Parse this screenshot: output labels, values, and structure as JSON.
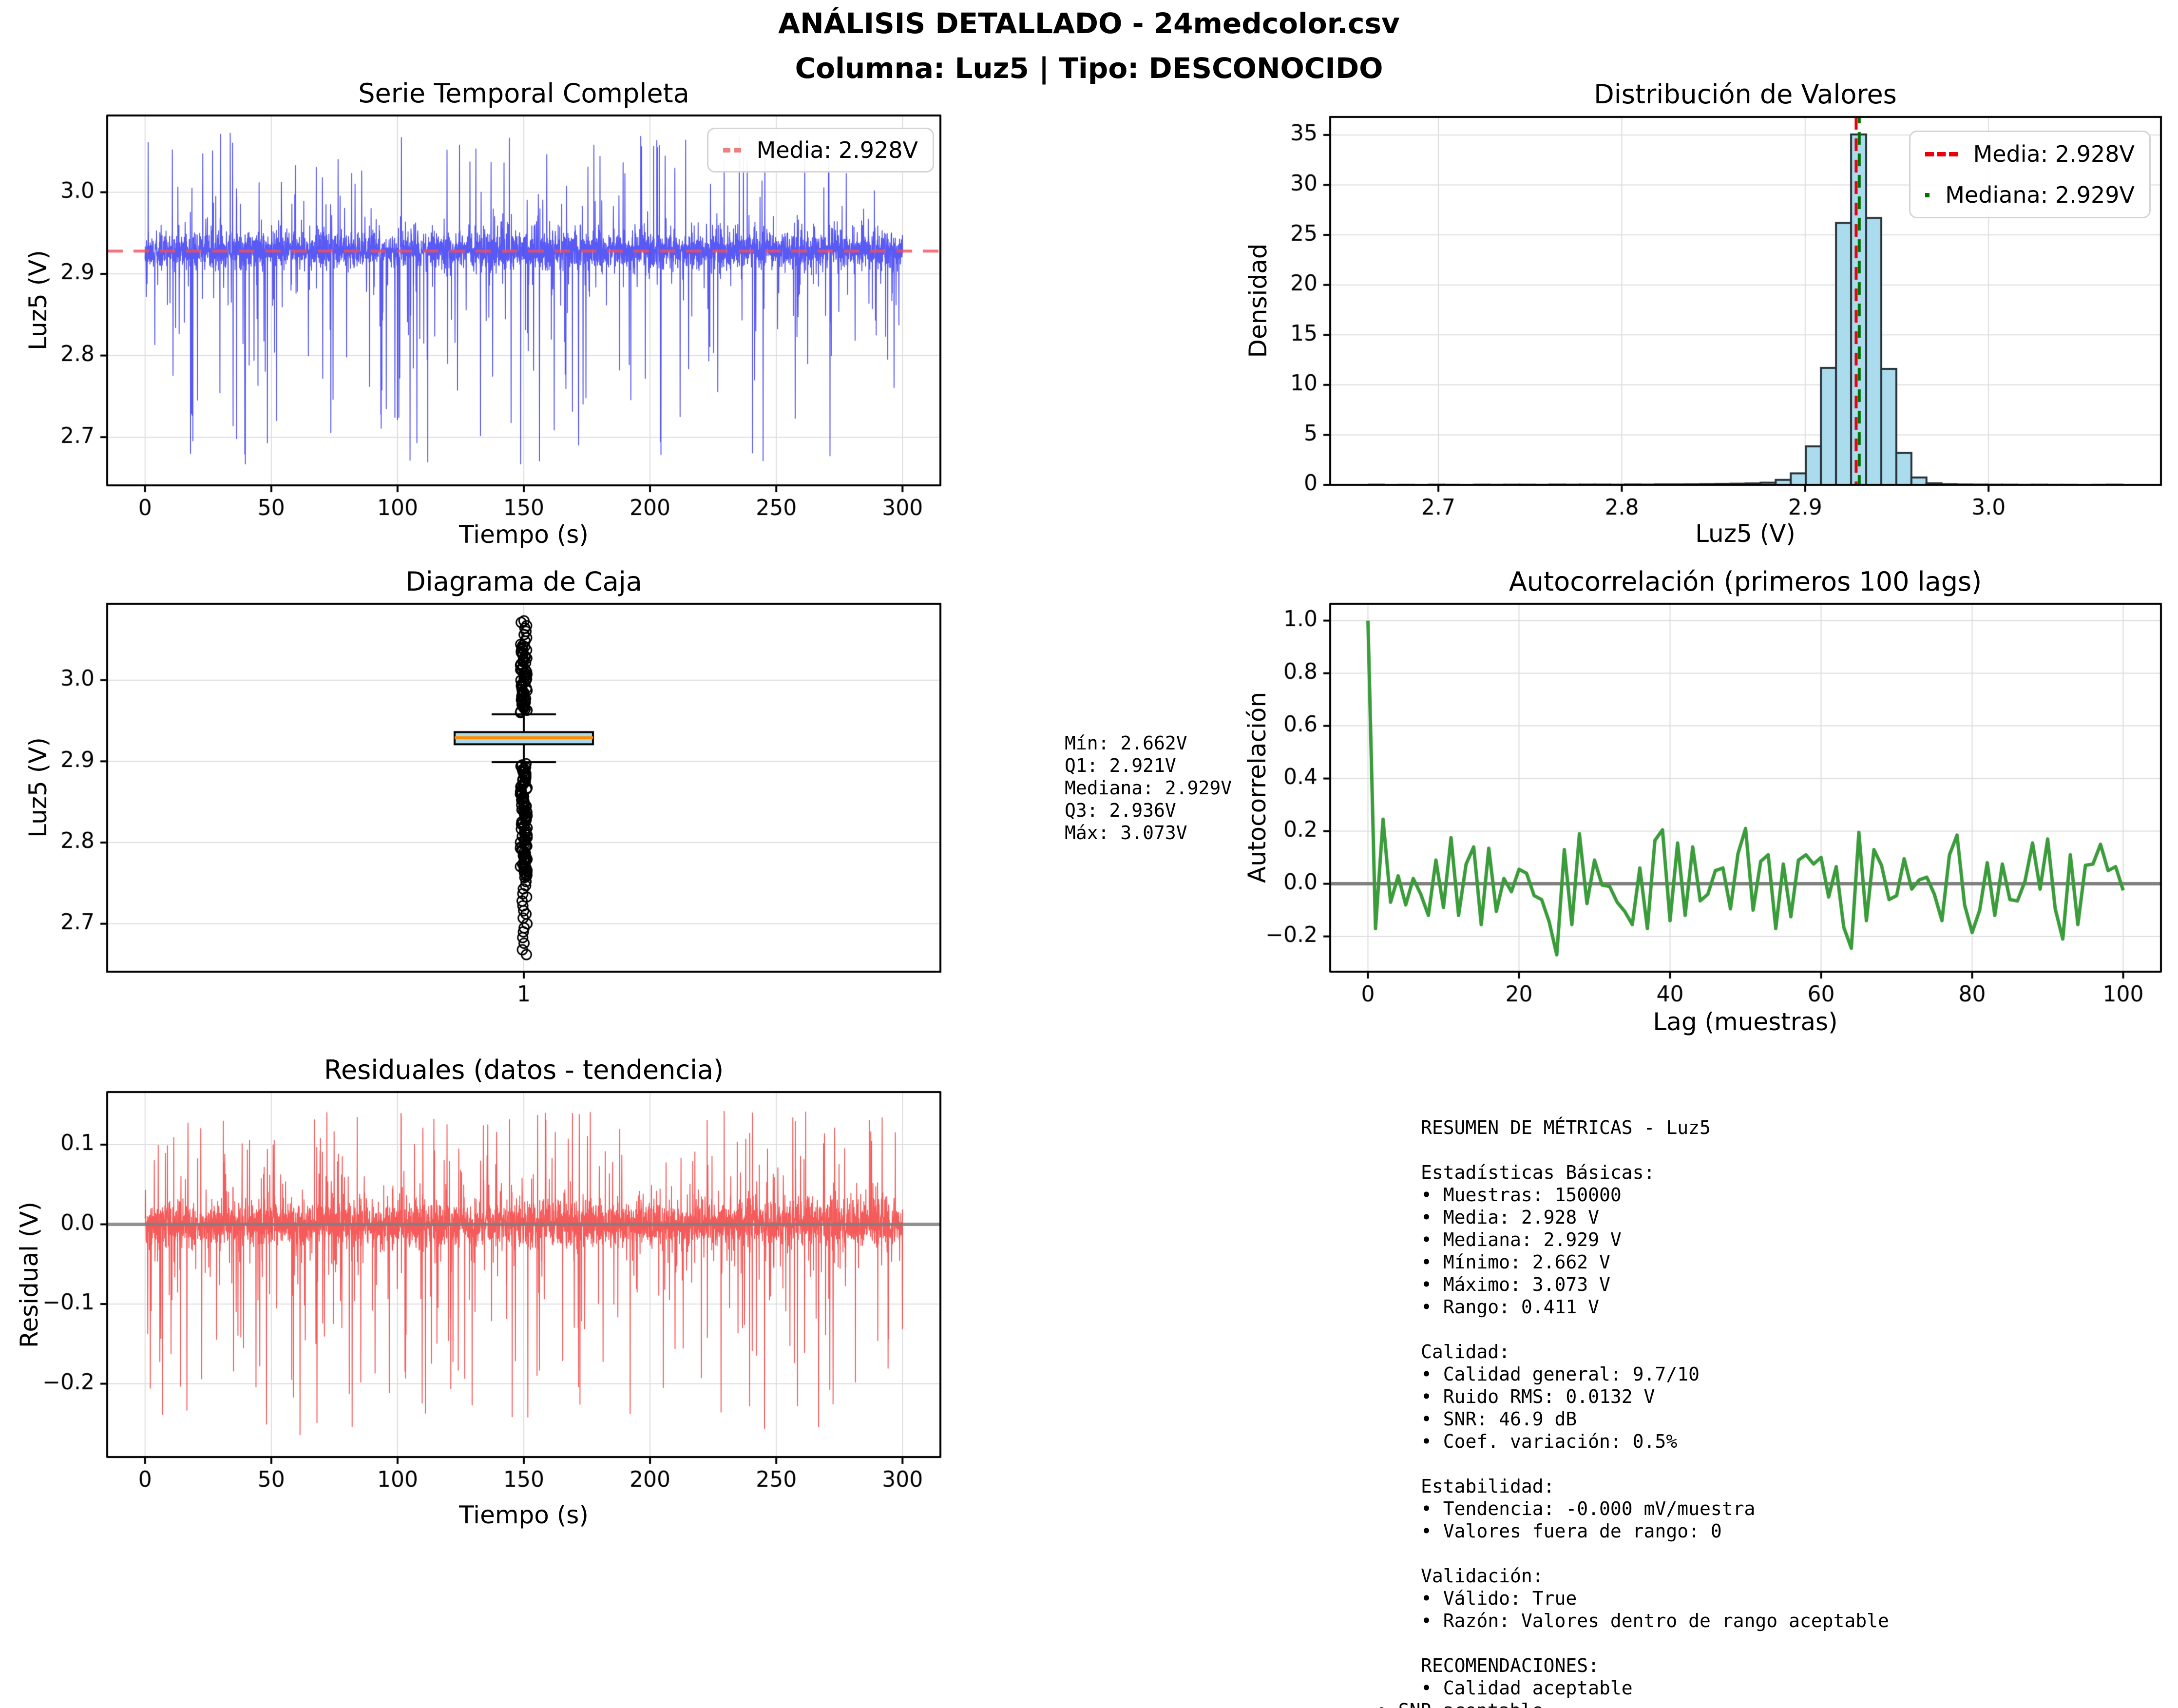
{
  "header": {
    "line1": "ANÁLISIS DETALLADO - 24medcolor.csv",
    "line2": "Columna: Luz5 | Tipo: DESCONOCIDO"
  },
  "colors": {
    "series_blue": "rgba(25,25,240,0.72)",
    "mean_dash_overlay": "rgba(242,80,90,0.80)",
    "legend_mean_sample": "#f08080",
    "hist_fill": "#aadcee",
    "hist_edge": "#28333a",
    "hist_mean_line": "#e8000b",
    "hist_median_line": "#007000",
    "box_fill": "#add8e6",
    "box_median": "#ff8c00",
    "acf_green": "#3a9c3a",
    "residual_red": "rgba(244,45,45,0.78)",
    "zero_line": "#808080",
    "grid": "#dcdcdc",
    "spine": "#000000"
  },
  "panels": {
    "timeseries": {
      "title": "Serie Temporal Completa",
      "xlabel": "Tiempo (s)",
      "ylabel": "Luz5 (V)",
      "legend": {
        "media": "Media: 2.928V"
      }
    },
    "histogram": {
      "title": "Distribución de Valores",
      "xlabel": "Luz5 (V)",
      "ylabel": "Densidad",
      "legend": {
        "media": "Media: 2.928V",
        "mediana": "Mediana: 2.929V"
      }
    },
    "boxplot": {
      "title": "Diagrama de Caja",
      "ylabel": "Luz5 (V)",
      "xtick": "1"
    },
    "autocorr": {
      "title": "Autocorrelación (primeros 100 lags)",
      "xlabel": "Lag (muestras)",
      "ylabel": "Autocorrelación"
    },
    "residuals": {
      "title": "Residuales (datos - tendencia)",
      "xlabel": "Tiempo (s)",
      "ylabel": "Residual (V)"
    }
  },
  "stats_box": {
    "lines": [
      "Mín: 2.662V",
      "Q1: 2.921V",
      "Mediana: 2.929V",
      "Q3: 2.936V",
      "Máx: 3.073V"
    ]
  },
  "summary_box": {
    "outdent_last_line": true,
    "lines": [
      "RESUMEN DE MÉTRICAS - Luz5",
      "",
      "Estadísticas Básicas:",
      "• Muestras: 150000",
      "• Media: 2.928 V",
      "• Mediana: 2.929 V",
      "• Mínimo: 2.662 V",
      "• Máximo: 3.073 V",
      "• Rango: 0.411 V",
      "",
      "Calidad:",
      "• Calidad general: 9.7/10",
      "• Ruido RMS: 0.0132 V",
      "• SNR: 46.9 dB",
      "• Coef. variación: 0.5%",
      "",
      "Estabilidad:",
      "• Tendencia: -0.000 mV/muestra",
      "• Valores fuera de rango: 0",
      "",
      "Validación:",
      "• Válido: True",
      "• Razón: Valores dentro de rango aceptable",
      "",
      "RECOMENDACIONES:",
      "• Calidad aceptable",
      "• SNR aceptable"
    ]
  },
  "chart_data": [
    {
      "id": "timeseries",
      "type": "line",
      "title": "Serie Temporal Completa",
      "xlabel": "Tiempo (s)",
      "ylabel": "Luz5 (V)",
      "xlim": [
        -15,
        315
      ],
      "ylim": [
        2.641,
        3.094
      ],
      "xticks": [
        [
          0,
          "0"
        ],
        [
          50,
          "50"
        ],
        [
          100,
          "100"
        ],
        [
          150,
          "150"
        ],
        [
          200,
          "200"
        ],
        [
          250,
          "250"
        ],
        [
          300,
          "300"
        ]
      ],
      "yticks": [
        [
          2.7,
          "2.7"
        ],
        [
          2.8,
          "2.8"
        ],
        [
          2.9,
          "2.9"
        ],
        [
          3.0,
          "3.0"
        ]
      ],
      "grid": true,
      "legend_position": "upper right",
      "mean_line": 2.928,
      "synth": {
        "n": 4200,
        "x_max": 300,
        "mean": 2.9285,
        "sigma": 0.011,
        "p_down": 0.05,
        "down_min": 0.04,
        "down_range": 0.225,
        "p_up": 0.042,
        "up_min": 0.03,
        "up_range": 0.115,
        "vmin": 2.662,
        "vmax": 3.073,
        "seed": 42
      }
    },
    {
      "id": "histogram",
      "type": "bar",
      "title": "Distribución de Valores",
      "xlabel": "Luz5 (V)",
      "ylabel": "Densidad",
      "xlim": [
        2.641,
        3.094
      ],
      "ylim": [
        0,
        36.8
      ],
      "xticks": [
        [
          2.7,
          "2.7"
        ],
        [
          2.8,
          "2.8"
        ],
        [
          2.9,
          "2.9"
        ],
        [
          3.0,
          "3.0"
        ]
      ],
      "yticks": [
        [
          0,
          "0"
        ],
        [
          5,
          "5"
        ],
        [
          10,
          "10"
        ],
        [
          15,
          "15"
        ],
        [
          20,
          "20"
        ],
        [
          25,
          "25"
        ],
        [
          30,
          "30"
        ],
        [
          35,
          "35"
        ]
      ],
      "grid": true,
      "legend_position": "upper right",
      "bin_start": 2.662,
      "bin_width": 0.00822,
      "densities": [
        0.02,
        0.0,
        0.01,
        0.0,
        0.02,
        0.01,
        0.0,
        0.02,
        0.01,
        0.02,
        0.02,
        0.01,
        0.03,
        0.02,
        0.03,
        0.03,
        0.02,
        0.04,
        0.03,
        0.05,
        0.05,
        0.06,
        0.08,
        0.1,
        0.12,
        0.15,
        0.22,
        0.5,
        1.15,
        3.85,
        11.7,
        26.2,
        35.05,
        26.7,
        11.6,
        3.2,
        0.74,
        0.16,
        0.07,
        0.04,
        0.03,
        0.02,
        0.02,
        0.01,
        0.02,
        0.01,
        0.01,
        0.0,
        0.01,
        0.02
      ],
      "mean_vline": 2.9278,
      "median_vline": 2.9295
    },
    {
      "id": "boxplot",
      "type": "box",
      "title": "Diagrama de Caja",
      "ylabel": "Luz5 (V)",
      "xticks": [
        [
          1,
          "1"
        ]
      ],
      "ylim": [
        2.641,
        3.094
      ],
      "yticks": [
        [
          2.7,
          "2.7"
        ],
        [
          2.8,
          "2.8"
        ],
        [
          2.9,
          "2.9"
        ],
        [
          3.0,
          "3.0"
        ]
      ],
      "grid": true,
      "stats": {
        "min": 2.662,
        "q1": 2.921,
        "median": 2.929,
        "q3": 2.936,
        "max": 3.073,
        "whisker_low": 2.899,
        "whisker_high": 2.958
      },
      "outliers": {
        "above_dense": {
          "from": 2.96,
          "to": 3.044,
          "count": 60
        },
        "above_sparse": [
          3.048,
          3.052,
          3.056,
          3.06,
          3.064,
          3.067,
          3.071,
          3.073
        ],
        "below_dense": {
          "from": 2.757,
          "to": 2.897,
          "count": 95
        },
        "below_sparse": [
          2.752,
          2.747,
          2.743,
          2.737,
          2.733,
          2.728,
          2.722,
          2.716,
          2.712,
          2.707,
          2.7,
          2.695,
          2.69,
          2.683,
          2.676,
          2.668,
          2.662
        ]
      }
    },
    {
      "id": "autocorr",
      "type": "line",
      "title": "Autocorrelación (primeros 100 lags)",
      "xlabel": "Lag (muestras)",
      "ylabel": "Autocorrelación",
      "xlim": [
        -5,
        105
      ],
      "ylim": [
        -0.334,
        1.064
      ],
      "xticks": [
        [
          0,
          "0"
        ],
        [
          20,
          "20"
        ],
        [
          40,
          "40"
        ],
        [
          60,
          "60"
        ],
        [
          80,
          "80"
        ],
        [
          100,
          "100"
        ]
      ],
      "yticks": [
        [
          -0.2,
          "−0.2"
        ],
        [
          0.0,
          "0.0"
        ],
        [
          0.2,
          "0.2"
        ],
        [
          0.4,
          "0.4"
        ],
        [
          0.6,
          "0.6"
        ],
        [
          0.8,
          "0.8"
        ],
        [
          1.0,
          "1.0"
        ]
      ],
      "grid": true,
      "zero_line": 0,
      "values": [
        1.0,
        -0.17,
        0.245,
        -0.07,
        0.03,
        -0.08,
        0.02,
        -0.04,
        -0.12,
        0.09,
        -0.09,
        0.175,
        -0.12,
        0.075,
        0.14,
        -0.155,
        0.135,
        -0.105,
        0.02,
        -0.03,
        0.055,
        0.04,
        -0.045,
        -0.06,
        -0.145,
        -0.27,
        0.13,
        -0.155,
        0.19,
        -0.075,
        0.09,
        -0.005,
        -0.01,
        -0.07,
        -0.105,
        -0.155,
        0.06,
        -0.17,
        0.165,
        0.205,
        -0.14,
        0.155,
        -0.12,
        0.14,
        -0.065,
        -0.04,
        0.05,
        0.06,
        -0.095,
        0.115,
        0.21,
        -0.1,
        0.085,
        0.11,
        -0.17,
        0.075,
        -0.125,
        0.09,
        0.11,
        0.075,
        0.1,
        -0.05,
        0.065,
        -0.165,
        -0.245,
        0.195,
        -0.14,
        0.13,
        0.07,
        -0.06,
        -0.045,
        0.095,
        -0.02,
        0.015,
        0.025,
        -0.04,
        -0.14,
        0.11,
        0.185,
        -0.08,
        -0.185,
        -0.1,
        0.08,
        -0.12,
        0.075,
        -0.06,
        -0.065,
        0.01,
        0.155,
        -0.02,
        0.17,
        -0.095,
        -0.21,
        0.11,
        -0.155,
        0.07,
        0.075,
        0.15,
        0.05,
        0.065,
        -0.025
      ]
    },
    {
      "id": "residuals",
      "type": "line",
      "title": "Residuales (datos - tendencia)",
      "xlabel": "Tiempo (s)",
      "ylabel": "Residual (V)",
      "xlim": [
        -15,
        315
      ],
      "ylim": [
        -0.292,
        0.166
      ],
      "xticks": [
        [
          0,
          "0"
        ],
        [
          50,
          "50"
        ],
        [
          100,
          "100"
        ],
        [
          150,
          "150"
        ],
        [
          200,
          "200"
        ],
        [
          250,
          "250"
        ],
        [
          300,
          "300"
        ]
      ],
      "yticks": [
        [
          -0.2,
          "−0.2"
        ],
        [
          -0.1,
          "−0.1"
        ],
        [
          0.0,
          "0.0"
        ],
        [
          0.1,
          "0.1"
        ]
      ],
      "grid": true,
      "zero_line": 0,
      "synth": {
        "n": 4200,
        "x_max": 300,
        "mean": 0,
        "sigma": 0.0135,
        "p_down": 0.05,
        "down_min": 0.045,
        "down_range": 0.22,
        "p_up": 0.05,
        "up_min": 0.03,
        "up_range": 0.112,
        "vmin": -0.27,
        "vmax": 0.145,
        "seed": 99
      }
    }
  ]
}
